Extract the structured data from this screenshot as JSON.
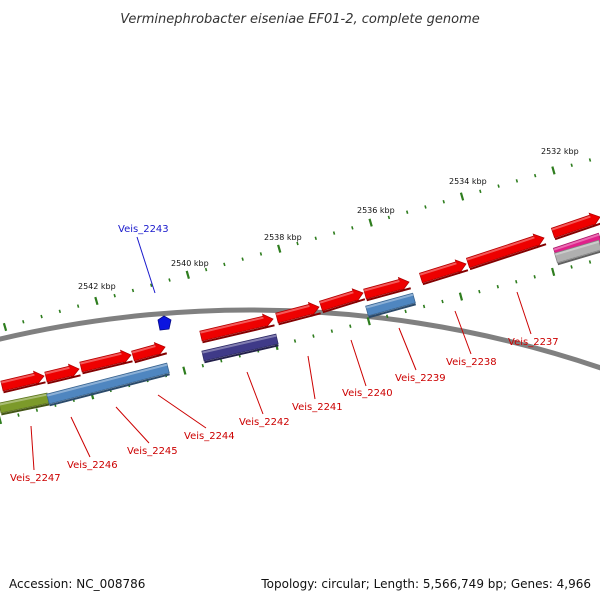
{
  "title": "Verminephrobacter eiseniae EF01-2, complete genome",
  "footer": {
    "accession": "Accession: NC_008786",
    "topology": "Topology: circular; Length: 5,566,749 bp; Genes: 4,966"
  },
  "colors": {
    "backbone": "#808080",
    "tick": "#2e7d1e",
    "gene_red": "#ee0000",
    "label_red": "#cc0000",
    "label_blue": "#1a1acc",
    "steelblue": "#4f86c0",
    "purple": "#3f3a88",
    "olive": "#7c9a2a",
    "magenta": "#e0208a",
    "gray": "#b0b0b0",
    "blue_marker": "#0b14e0"
  },
  "kbp_labels": [
    "2532 kbp",
    "2534 kbp",
    "2536 kbp",
    "2538 kbp",
    "2540 kbp",
    "2542 kbp"
  ],
  "gene_labels": [
    {
      "text": "Veis_2243",
      "color": "blue"
    },
    {
      "text": "Veis_2237",
      "color": "red"
    },
    {
      "text": "Veis_2238",
      "color": "red"
    },
    {
      "text": "Veis_2239",
      "color": "red"
    },
    {
      "text": "Veis_2240",
      "color": "red"
    },
    {
      "text": "Veis_2241",
      "color": "red"
    },
    {
      "text": "Veis_2242",
      "color": "red"
    },
    {
      "text": "Veis_2244",
      "color": "red"
    },
    {
      "text": "Veis_2245",
      "color": "red"
    },
    {
      "text": "Veis_2246",
      "color": "red"
    },
    {
      "text": "Veis_2247",
      "color": "red"
    }
  ]
}
